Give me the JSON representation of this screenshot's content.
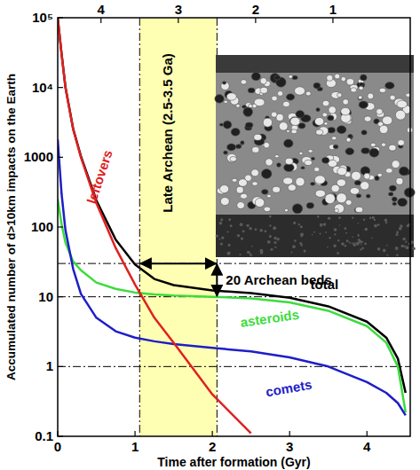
{
  "chart_data": {
    "type": "line",
    "x_label": "Time after formation (Gyr)",
    "y_label": "Accumulated number of d>10km impacts on the Earth",
    "log": "y",
    "x": [
      0,
      0.05,
      0.1,
      0.2,
      0.3,
      0.5,
      0.75,
      1,
      1.25,
      1.5,
      2,
      2.5,
      3,
      3.5,
      4,
      4.25,
      4.4,
      4.5
    ],
    "xlim": [
      0,
      4.56
    ],
    "xticks": [
      0,
      1,
      2,
      3,
      4
    ],
    "x2lim": [
      4.56,
      0
    ],
    "x2ticks": [
      4,
      3,
      2,
      1
    ],
    "ylim": [
      0.1,
      100000
    ],
    "yticks": [
      0.1,
      1,
      10,
      100,
      1000,
      {
        "value": 10000,
        "label": "10⁴"
      },
      {
        "value": 100000,
        "label": "10⁵"
      }
    ],
    "series": [
      {
        "name": "total",
        "color": "#000000",
        "values": [
          100000,
          30400,
          10150,
          2560,
          1035,
          241,
          66,
          29,
          18,
          14.7,
          12.3,
          11.3,
          9.7,
          7.3,
          4.4,
          2.6,
          1.3,
          0.42
        ]
      },
      {
        "name": "asteroids",
        "color": "#3cdc3c",
        "values": [
          250,
          110,
          60,
          32,
          24,
          16,
          13,
          11.5,
          10.8,
          10.4,
          10,
          9.5,
          8.3,
          6.3,
          3.8,
          2.2,
          1.0,
          0.22
        ]
      },
      {
        "name": "comets",
        "color": "#1e1ec8",
        "values": [
          1800,
          300,
          90,
          25,
          11,
          5,
          3.2,
          2.6,
          2.3,
          2.1,
          1.85,
          1.65,
          1.35,
          1.0,
          0.6,
          0.42,
          0.3,
          0.2
        ]
      },
      {
        "name": "leftovers",
        "color": "#e02020",
        "values": [
          100000,
          30000,
          10000,
          2500,
          1000,
          220,
          50,
          15,
          5,
          2.2,
          0.4,
          0.11,
          null,
          null,
          null,
          null,
          null,
          null
        ]
      }
    ],
    "annotations": {
      "band": {
        "label": "Late Archean (2.5-3.5 Ga)",
        "x": [
          1.06,
          2.06
        ],
        "color": "#ffff99"
      },
      "ref_lines": [
        30,
        10,
        1
      ],
      "arrow": {
        "label": "20 Archean beds",
        "x": 2.06,
        "y": [
          10,
          30
        ]
      }
    }
  }
}
